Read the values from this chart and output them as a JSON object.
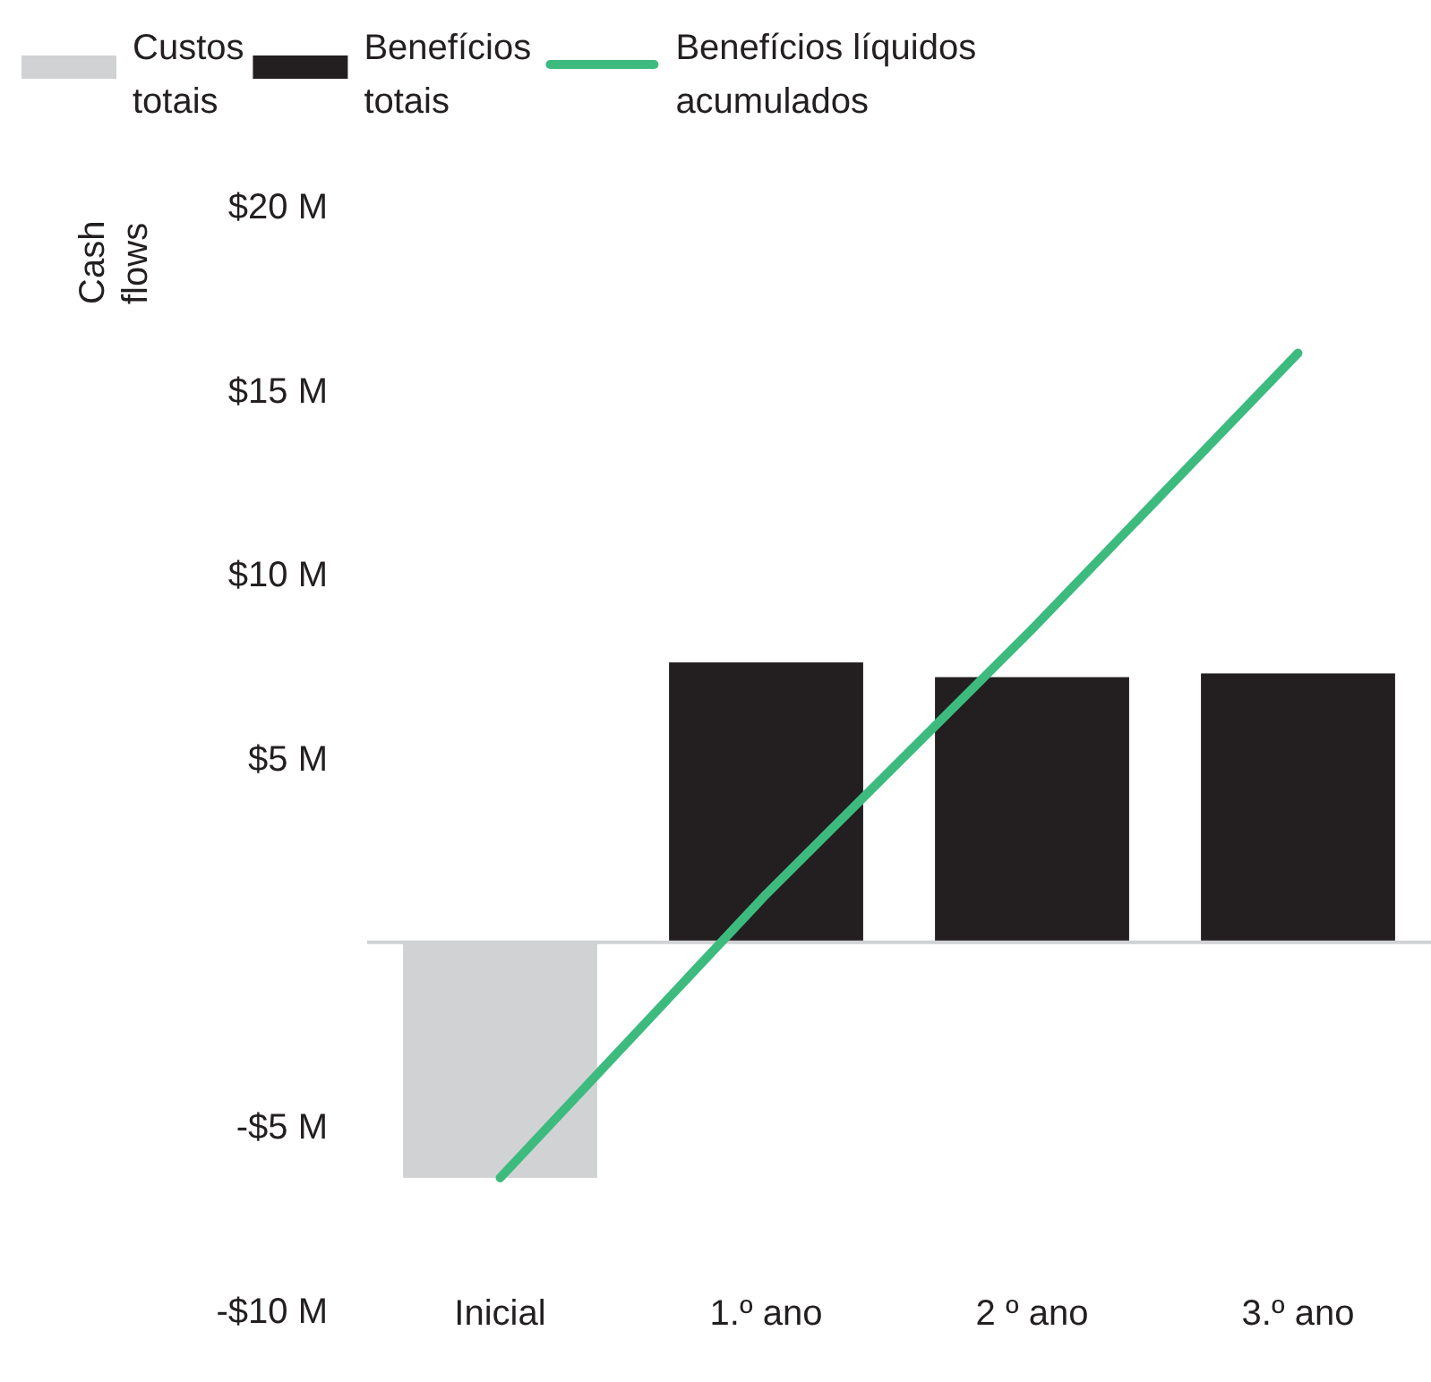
{
  "chart_data": {
    "type": "bar",
    "categories": [
      "Inicial",
      "1.º ano",
      "2 º ano",
      "3.º ano"
    ],
    "ylabel": "Cash flows",
    "legend": "top left",
    "ylim": [
      -10,
      20
    ],
    "yticks": [
      {
        "value": -10,
        "label": "-$10 M"
      },
      {
        "value": -5,
        "label": "-$5 M"
      },
      {
        "value": 5,
        "label": "$5 M"
      },
      {
        "value": 10,
        "label": "$10 M"
      },
      {
        "value": 15,
        "label": "$15 M"
      },
      {
        "value": 20,
        "label": "$20 M"
      }
    ],
    "series": [
      {
        "name": "Custos totais",
        "color": "#d1d2d4",
        "values": [
          -6.4,
          null,
          null,
          null
        ]
      },
      {
        "name": "Benefícios totais",
        "color": "#231f20",
        "values": [
          null,
          7.6,
          7.2,
          7.3
        ]
      },
      {
        "name": "Benefícios líquidos acumulados",
        "type": "line",
        "color": "#3dbb7f",
        "values": [
          -6.4,
          1.3,
          8.5,
          16.0
        ]
      }
    ]
  }
}
